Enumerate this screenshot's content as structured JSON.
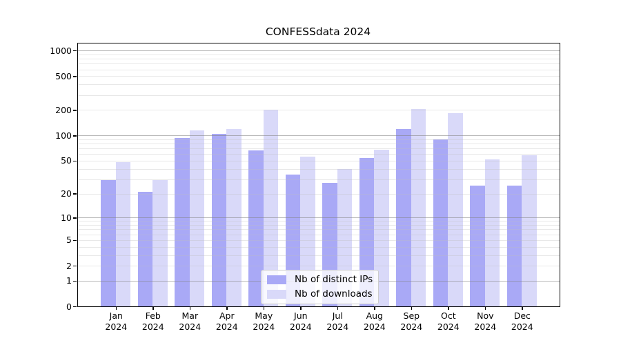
{
  "figure": {
    "title": "CONFESSdata 2024"
  },
  "legend": {
    "items": [
      {
        "label": "Nb of distinct IPs",
        "color": "#a9a9f6"
      },
      {
        "label": "Nb of downloads",
        "color": "#d9d9f9"
      }
    ]
  },
  "axes": {
    "y_tick_labels": [
      "1000",
      "500",
      "200",
      "100",
      "50",
      "20",
      "10",
      "5",
      "2",
      "1",
      "0"
    ],
    "x_tick_labels": [
      "Jan 2024",
      "Feb 2024",
      "Mar 2024",
      "Apr 2024",
      "May 2024",
      "Jun 2024",
      "Jul 2024",
      "Aug 2024",
      "Sep 2024",
      "Oct 2024",
      "Nov 2024",
      "Dec 2024"
    ]
  },
  "chart_data": {
    "type": "bar",
    "title": "CONFESSdata 2024",
    "categories": [
      "Jan 2024",
      "Feb 2024",
      "Mar 2024",
      "Apr 2024",
      "May 2024",
      "Jun 2024",
      "Jul 2024",
      "Aug 2024",
      "Sep 2024",
      "Oct 2024",
      "Nov 2024",
      "Dec 2024"
    ],
    "series": [
      {
        "name": "Nb of distinct IPs",
        "color": "#a9a9f6",
        "values": [
          29,
          21,
          93,
          104,
          66,
          34,
          27,
          54,
          118,
          89,
          25,
          25
        ]
      },
      {
        "name": "Nb of downloads",
        "color": "#d9d9f9",
        "values": [
          48,
          29,
          114,
          120,
          200,
          56,
          40,
          68,
          205,
          185,
          52,
          58
        ]
      }
    ],
    "xlabel": "",
    "ylabel": "",
    "yscale": "log10(1+y)",
    "yticks": [
      1000,
      500,
      200,
      100,
      50,
      20,
      10,
      5,
      2,
      1,
      0
    ],
    "minor_gridlines": [
      2,
      3,
      4,
      5,
      6,
      7,
      8,
      9,
      20,
      30,
      40,
      50,
      60,
      70,
      80,
      90,
      200,
      300,
      400,
      500,
      600,
      700,
      800,
      900
    ],
    "major_gridlines": [
      1,
      10,
      100,
      1000
    ],
    "ylim": [
      0,
      1210
    ],
    "grid": true,
    "legend_position": "lower center"
  },
  "colors": {
    "bar_distinct_ips": "#a9a9f6",
    "bar_downloads": "#d9d9f9",
    "grid_major": "#bbbbbb",
    "grid_minor": "#ebebeb",
    "axis_line": "#000000",
    "background": "#ffffff"
  }
}
